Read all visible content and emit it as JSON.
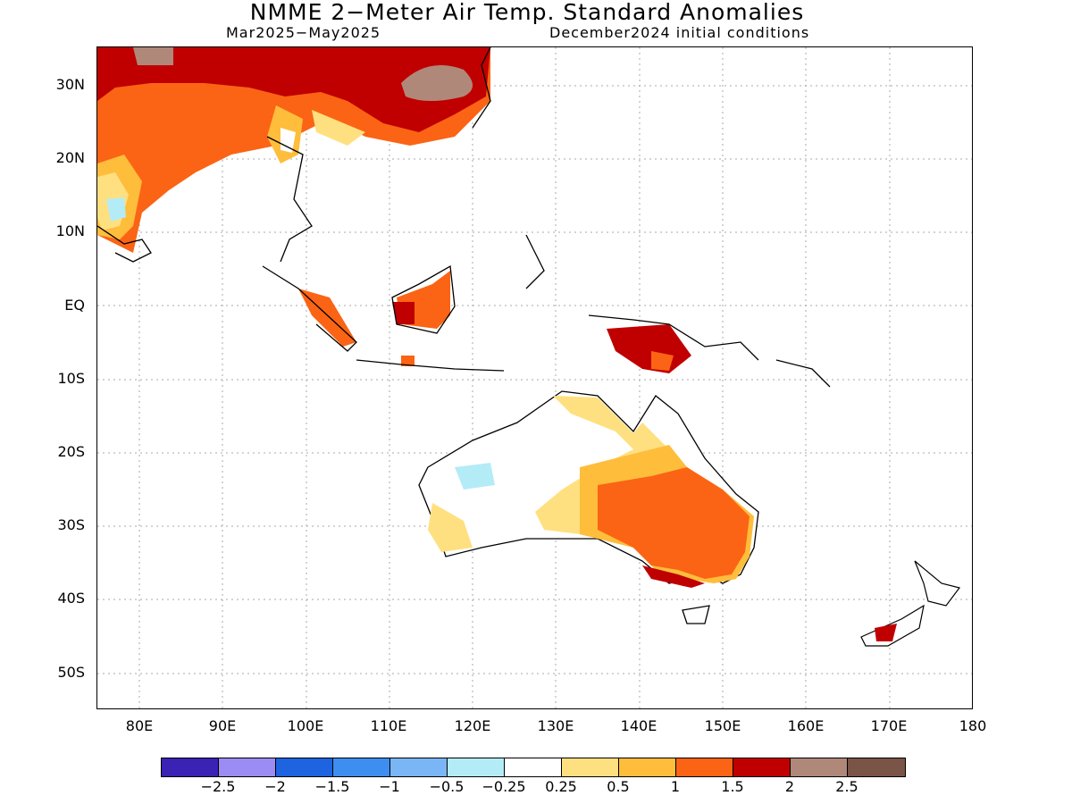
{
  "header": {
    "title": "NMME 2−Meter Air Temp. Standard Anomalies",
    "period": "Mar2025−May2025",
    "init": "December2024 initial conditions"
  },
  "map": {
    "lat_ticks": [
      "30N",
      "20N",
      "10N",
      "EQ",
      "10S",
      "20S",
      "30S",
      "40S",
      "50S"
    ],
    "lon_ticks": [
      "80E",
      "90E",
      "100E",
      "110E",
      "120E",
      "130E",
      "140E",
      "150E",
      "160E",
      "170E",
      "180"
    ],
    "lat_range": [
      -55,
      35
    ],
    "lon_range": [
      75,
      180
    ]
  },
  "colorbar": {
    "labels": [
      "−2.5",
      "−2",
      "−1.5",
      "−1",
      "−0.5",
      "−0.25",
      "0.25",
      "0.5",
      "1",
      "1.5",
      "2",
      "2.5"
    ],
    "colors": [
      "#3a22b4",
      "#9b8cf3",
      "#1e63e0",
      "#3d8ef0",
      "#7ab6f5",
      "#b3ecf7",
      "#ffffff",
      "#ffe080",
      "#ffbd3c",
      "#fb6414",
      "#c00000",
      "#b0887a",
      "#7a5446"
    ]
  }
}
